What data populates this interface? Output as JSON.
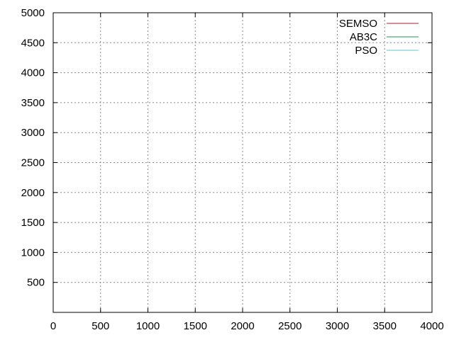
{
  "chart_data": {
    "type": "line",
    "title": "",
    "xlabel": "",
    "ylabel": "",
    "xlim": [
      0,
      4000
    ],
    "ylim": [
      0,
      5000
    ],
    "xticks": [
      0,
      500,
      1000,
      1500,
      2000,
      2500,
      3000,
      3500,
      4000
    ],
    "yticks": [
      500,
      1000,
      1500,
      2000,
      2500,
      3000,
      3500,
      4000,
      4500,
      5000
    ],
    "grid": true,
    "legend_position": "top-right",
    "series": [
      {
        "name": "SEMSO",
        "color": "#b2182b",
        "x": [],
        "y": []
      },
      {
        "name": "AB3C",
        "color": "#1a9850",
        "x": [],
        "y": []
      },
      {
        "name": "PSO",
        "color": "#66c2d8",
        "x": [],
        "y": []
      }
    ]
  }
}
